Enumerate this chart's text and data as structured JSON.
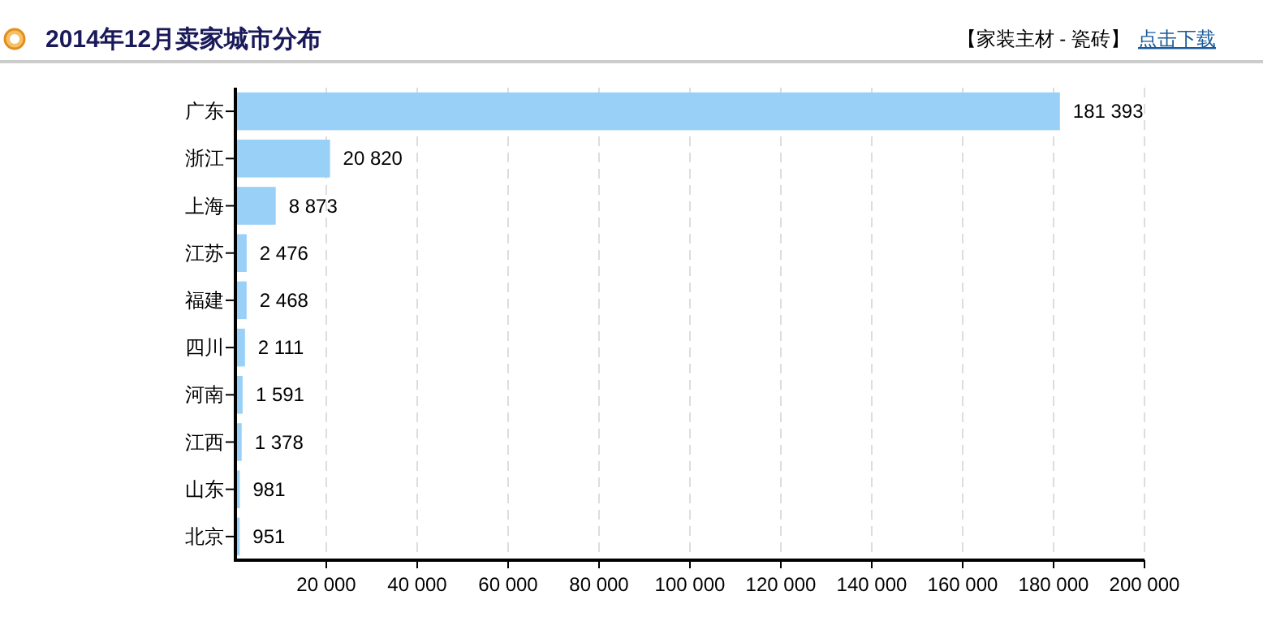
{
  "chart_data": {
    "type": "bar",
    "orientation": "horizontal",
    "title": "2014年12月卖家城市分布",
    "annotations": [
      "【家装主材 - 瓷砖】",
      "点击下载"
    ],
    "categories": [
      "广东",
      "浙江",
      "上海",
      "江苏",
      "福建",
      "四川",
      "河南",
      "江西",
      "山东",
      "北京"
    ],
    "values": [
      181393,
      20820,
      8873,
      2476,
      2468,
      2111,
      1591,
      1378,
      981,
      951
    ],
    "value_labels": [
      "181 393",
      "20 820",
      "8 873",
      "2 476",
      "2 468",
      "2 111",
      "1 591",
      "1 378",
      "981",
      "951"
    ],
    "color": "#99d0f8",
    "xlim": [
      0,
      200000
    ],
    "xticks": [
      {
        "value": 20000,
        "label": "20 000"
      },
      {
        "value": 40000,
        "label": "40 000"
      },
      {
        "value": 60000,
        "label": "60 000"
      },
      {
        "value": 80000,
        "label": "80 000"
      },
      {
        "value": 100000,
        "label": "100 000"
      },
      {
        "value": 120000,
        "label": "120 000"
      },
      {
        "value": 140000,
        "label": "140 000"
      },
      {
        "value": 160000,
        "label": "160 000"
      },
      {
        "value": 180000,
        "label": "180 000"
      },
      {
        "value": 200000,
        "label": "200 000"
      }
    ],
    "grid": "x"
  }
}
